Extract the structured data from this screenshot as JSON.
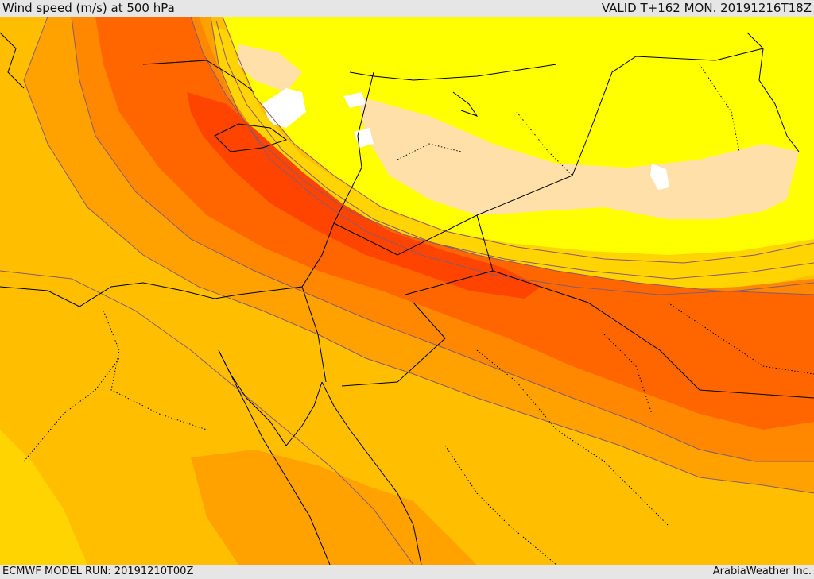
{
  "header": {
    "title": "Wind speed (m/s) at 500 hPa",
    "valid": "VALID T+162 MON. 20191216T18Z"
  },
  "footer": {
    "model_run": "ECMWF MODEL RUN: 20191210T00Z",
    "credit": "ArabiaWeather Inc."
  },
  "map": {
    "field": "500 hPa wind speed",
    "palette": {
      "very_low": "#ffffff",
      "low": "#ffe0a8",
      "yellow": "#ffff00",
      "gold": "#ffd400",
      "amber": "#ffbf00",
      "orange_light": "#ffa200",
      "orange": "#ff8800",
      "orange_dark": "#ff6600",
      "jet_core": "#ff4400",
      "contour": "#8a5a6b",
      "coast": "#000000",
      "border": "#000000"
    }
  }
}
